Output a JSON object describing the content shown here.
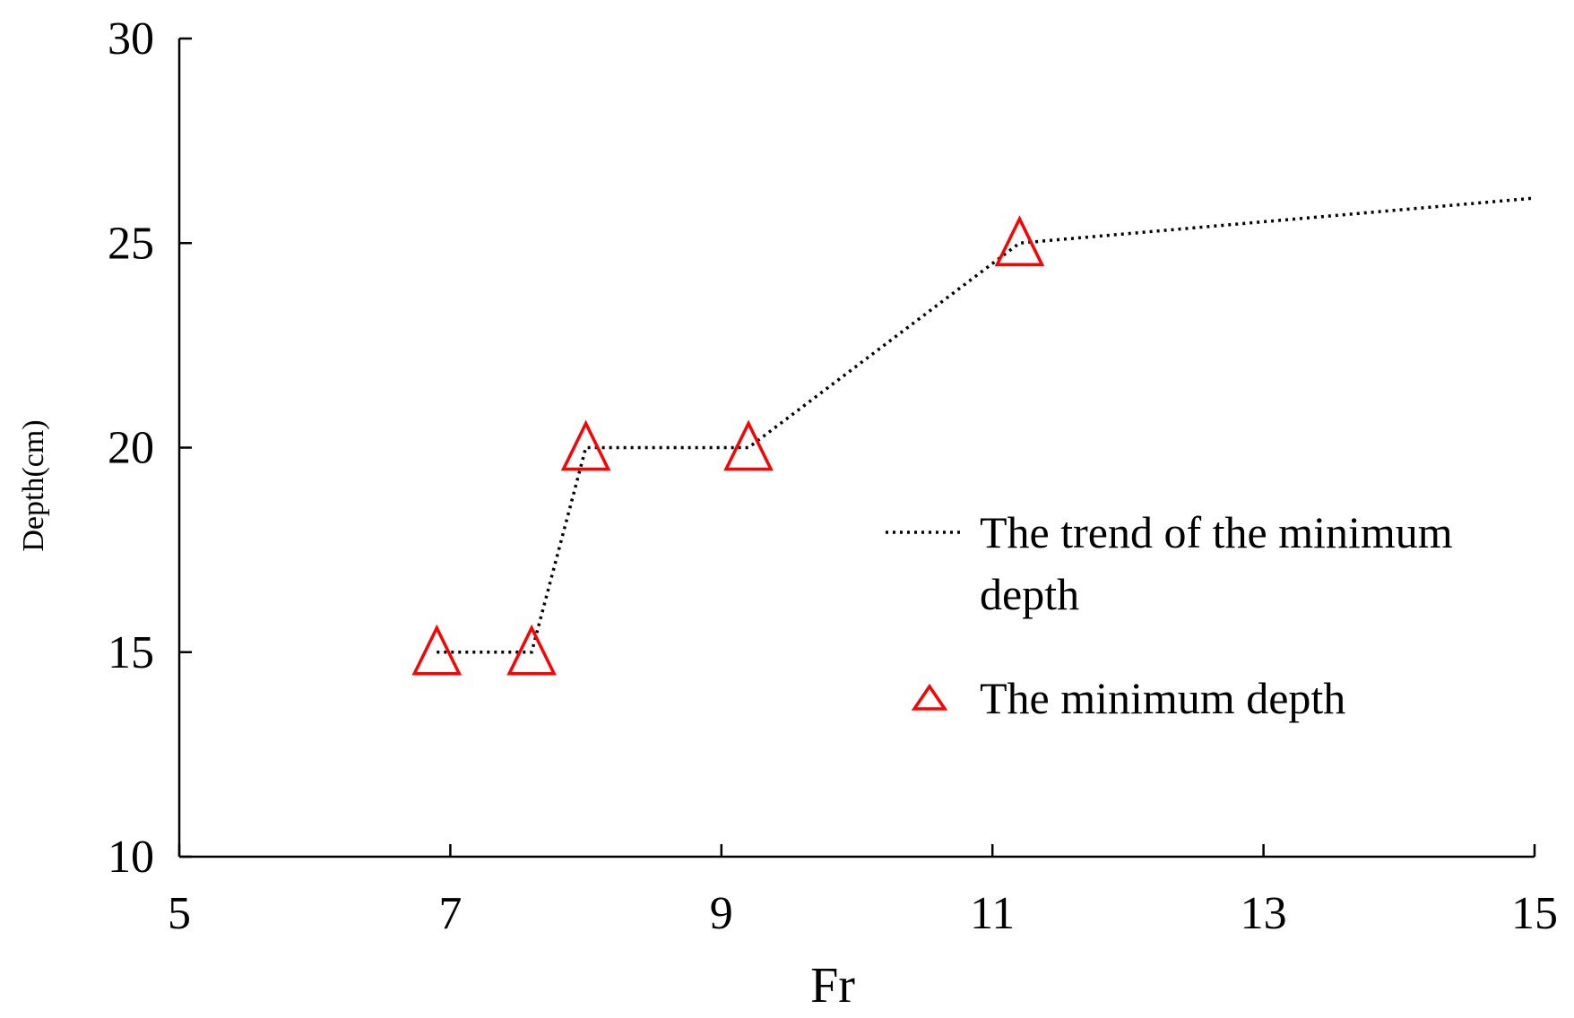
{
  "chart_data": {
    "type": "scatter",
    "xlabel": "Fr",
    "ylabel": "Depth(cm)",
    "xlim": [
      5,
      15
    ],
    "ylim": [
      10,
      30
    ],
    "xticks": [
      "5",
      "7",
      "9",
      "11",
      "13",
      "15"
    ],
    "yticks": [
      "10",
      "15",
      "20",
      "25",
      "30"
    ],
    "grid": false,
    "legend_position": "right",
    "marker_color": "#ff0000",
    "line_color": "#000000",
    "series": [
      {
        "name": "The trend of the minimum depth",
        "style": "dotted-line",
        "points": [
          {
            "x": 6.9,
            "y": 15
          },
          {
            "x": 7.6,
            "y": 15
          },
          {
            "x": 8.0,
            "y": 20
          },
          {
            "x": 9.2,
            "y": 20
          },
          {
            "x": 11.2,
            "y": 25
          },
          {
            "x": 15.0,
            "y": 26.1
          }
        ]
      },
      {
        "name": "The minimum depth",
        "style": "triangle-marker",
        "points": [
          {
            "x": 6.9,
            "y": 15
          },
          {
            "x": 7.6,
            "y": 15
          },
          {
            "x": 8.0,
            "y": 20
          },
          {
            "x": 9.2,
            "y": 20
          },
          {
            "x": 11.2,
            "y": 25
          }
        ]
      }
    ],
    "legend": {
      "trend_line1": "The trend of the minimum",
      "trend_line2": "depth",
      "marker_label": "The minimum depth"
    }
  }
}
